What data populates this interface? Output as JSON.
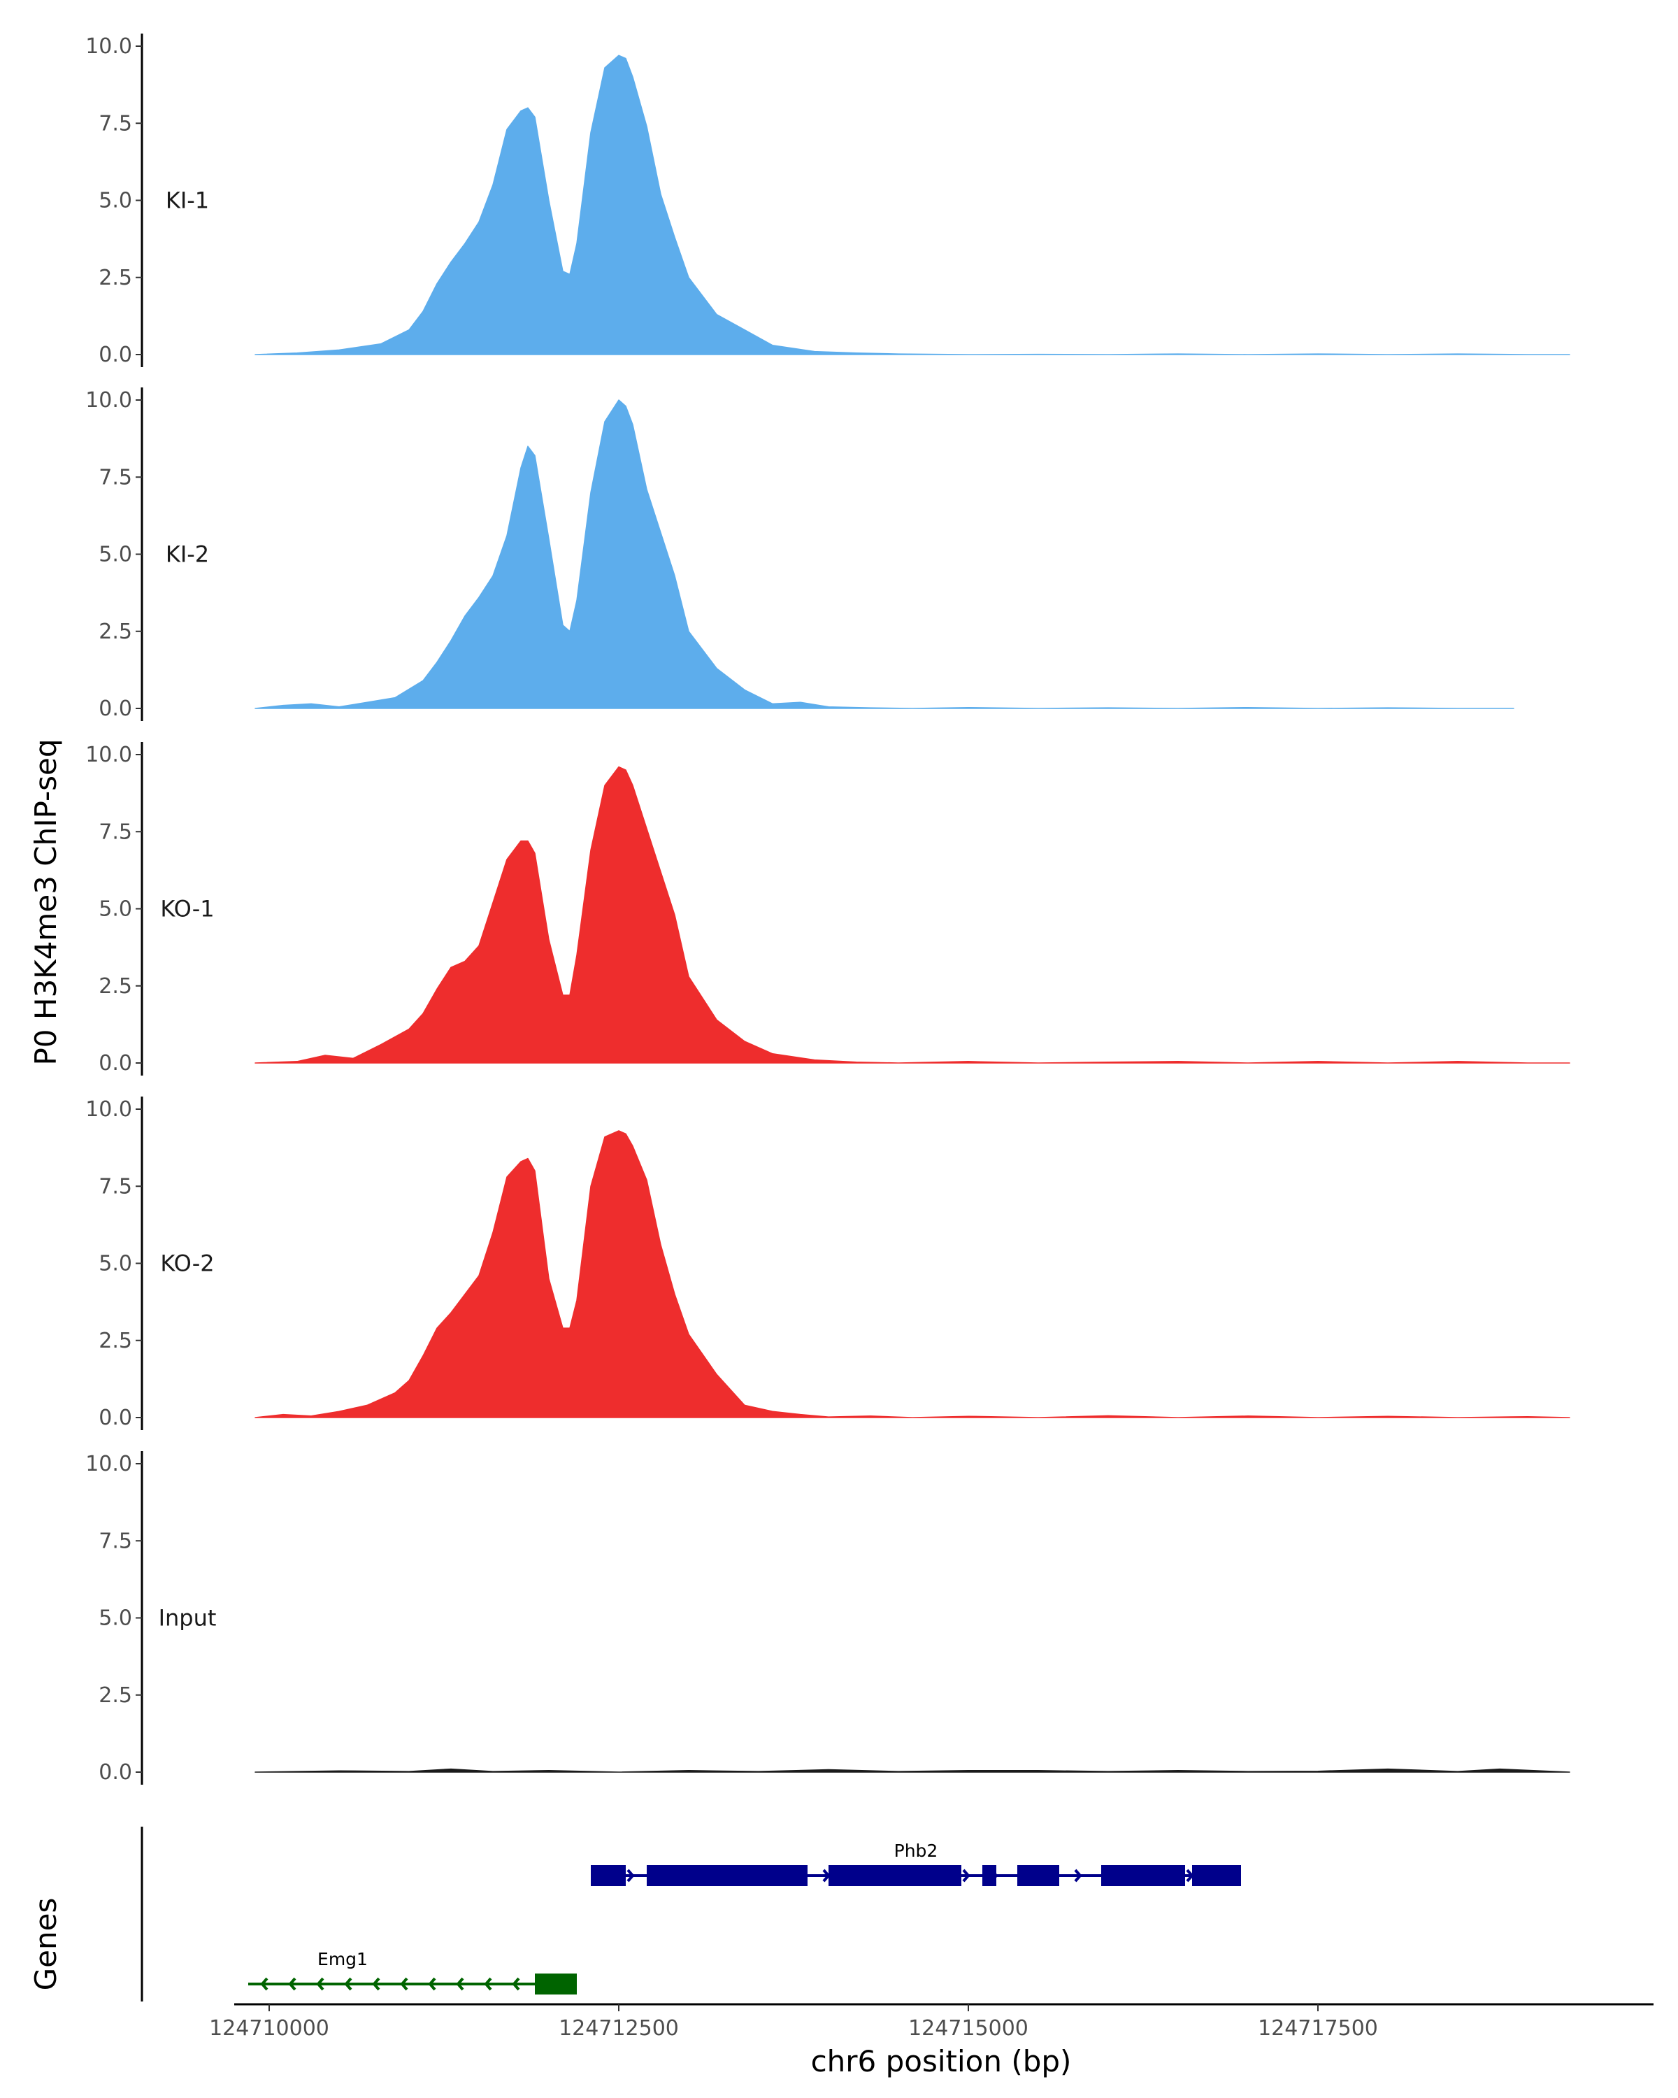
{
  "chart_data": {
    "type": "area",
    "ylabel": "P0 H3K4me3 ChIP-seq",
    "xlabel": "chr6 position (bp)",
    "xlim": [
      124709750,
      124719900
    ],
    "plot_x_range": [
      124709900,
      124719300
    ],
    "ylim": [
      0,
      10
    ],
    "yticks": [
      0,
      2.5,
      5,
      7.5,
      10
    ],
    "ytick_labels": [
      "0.0",
      "2.5",
      "5.0",
      "7.5",
      "10.0"
    ],
    "xticks": [
      124710000,
      124712500,
      124715000,
      124717500
    ],
    "xtick_labels": [
      "124710000",
      "124712500",
      "124715000",
      "124717500"
    ],
    "gene_track_label": "Genes",
    "grid": false,
    "legend": "none",
    "series": [
      {
        "name": "KI-1",
        "color": "#5DADEC",
        "x": [
          124709900,
          124710200,
          124710500,
          124710800,
          124711000,
          124711100,
          124711200,
          124711300,
          124711400,
          124711500,
          124711600,
          124711700,
          124711800,
          124711850,
          124711900,
          124712000,
          124712100,
          124712150,
          124712200,
          124712300,
          124712400,
          124712500,
          124712550,
          124712600,
          124712700,
          124712800,
          124712900,
          124713000,
          124713200,
          124713400,
          124713600,
          124713900,
          124714200,
          124714500,
          124715000,
          124715500,
          124716000,
          124716500,
          124717000,
          124717500,
          124718000,
          124718500,
          124719000,
          124719300
        ],
        "y": [
          0,
          0.05,
          0.15,
          0.35,
          0.8,
          1.4,
          2.3,
          3.0,
          3.6,
          4.3,
          5.5,
          7.3,
          7.9,
          8.0,
          7.7,
          5.0,
          2.7,
          2.6,
          3.6,
          7.2,
          9.3,
          9.7,
          9.6,
          9.0,
          7.4,
          5.2,
          3.8,
          2.5,
          1.3,
          0.8,
          0.3,
          0.1,
          0.05,
          0.02,
          0.0,
          0.01,
          0.0,
          0.02,
          0.0,
          0.02,
          0.0,
          0.02,
          0.0,
          0.0
        ]
      },
      {
        "name": "KI-2",
        "color": "#5DADEC",
        "x": [
          124709900,
          124710100,
          124710300,
          124710500,
          124710700,
          124710900,
          124711100,
          124711200,
          124711300,
          124711400,
          124711500,
          124711600,
          124711700,
          124711800,
          124711850,
          124711900,
          124712000,
          124712100,
          124712150,
          124712200,
          124712300,
          124712400,
          124712500,
          124712550,
          124712600,
          124712700,
          124712800,
          124712900,
          124713000,
          124713200,
          124713400,
          124713600,
          124713800,
          124714000,
          124714300,
          124714600,
          124715000,
          124715500,
          124716000,
          124716500,
          124717000,
          124717500,
          124718000,
          124718500,
          124718900
        ],
        "y": [
          0,
          0.1,
          0.15,
          0.05,
          0.2,
          0.35,
          0.9,
          1.5,
          2.2,
          3.0,
          3.6,
          4.3,
          5.6,
          7.8,
          8.5,
          8.2,
          5.5,
          2.7,
          2.5,
          3.5,
          7.0,
          9.3,
          10.0,
          9.8,
          9.2,
          7.1,
          5.7,
          4.3,
          2.5,
          1.3,
          0.6,
          0.15,
          0.2,
          0.05,
          0.02,
          0.0,
          0.03,
          0.0,
          0.02,
          0.0,
          0.03,
          0.0,
          0.02,
          0.0,
          0.0
        ]
      },
      {
        "name": "KO-1",
        "color": "#EE2D2D",
        "x": [
          124709900,
          124710200,
          124710400,
          124710600,
          124710800,
          124711000,
          124711100,
          124711200,
          124711300,
          124711400,
          124711500,
          124711600,
          124711700,
          124711800,
          124711850,
          124711900,
          124712000,
          124712100,
          124712150,
          124712200,
          124712300,
          124712400,
          124712500,
          124712550,
          124712600,
          124712700,
          124712800,
          124712900,
          124713000,
          124713200,
          124713400,
          124713600,
          124713900,
          124714200,
          124714500,
          124715000,
          124715500,
          124716000,
          124716500,
          124717000,
          124717500,
          124718000,
          124718500,
          124719000,
          124719300
        ],
        "y": [
          0,
          0.05,
          0.25,
          0.15,
          0.6,
          1.1,
          1.6,
          2.4,
          3.1,
          3.3,
          3.8,
          5.2,
          6.6,
          7.2,
          7.2,
          6.8,
          4.0,
          2.2,
          2.2,
          3.5,
          6.9,
          9.0,
          9.6,
          9.5,
          9.0,
          7.6,
          6.2,
          4.8,
          2.8,
          1.4,
          0.7,
          0.3,
          0.1,
          0.03,
          0.0,
          0.05,
          0.0,
          0.03,
          0.05,
          0.0,
          0.05,
          0.0,
          0.05,
          0.0,
          0.0
        ]
      },
      {
        "name": "KO-2",
        "color": "#EE2D2D",
        "x": [
          124709900,
          124710100,
          124710300,
          124710500,
          124710700,
          124710900,
          124711000,
          124711100,
          124711200,
          124711300,
          124711400,
          124711500,
          124711600,
          124711700,
          124711800,
          124711850,
          124711900,
          124712000,
          124712100,
          124712150,
          124712200,
          124712300,
          124712400,
          124712500,
          124712550,
          124712600,
          124712700,
          124712800,
          124712900,
          124713000,
          124713200,
          124713400,
          124713600,
          124713800,
          124714000,
          124714300,
          124714600,
          124715000,
          124715500,
          124716000,
          124716500,
          124717000,
          124717500,
          124718000,
          124718500,
          124719000,
          124719300
        ],
        "y": [
          0,
          0.1,
          0.05,
          0.2,
          0.4,
          0.8,
          1.2,
          2.0,
          2.9,
          3.4,
          4.0,
          4.6,
          6.0,
          7.8,
          8.3,
          8.4,
          8.0,
          4.5,
          2.9,
          2.9,
          3.8,
          7.5,
          9.1,
          9.3,
          9.2,
          8.8,
          7.7,
          5.6,
          4.0,
          2.7,
          1.4,
          0.4,
          0.2,
          0.1,
          0.02,
          0.05,
          0.0,
          0.04,
          0.0,
          0.06,
          0.0,
          0.05,
          0.0,
          0.04,
          0.0,
          0.03,
          0.0
        ]
      },
      {
        "name": "Input",
        "color": "#1a1a1a",
        "x": [
          124709900,
          124710500,
          124711000,
          124711300,
          124711600,
          124712000,
          124712500,
          124713000,
          124713500,
          124714000,
          124714500,
          124715000,
          124715500,
          124716000,
          124716500,
          124717000,
          124717500,
          124718000,
          124718500,
          124718800,
          124719300
        ],
        "y": [
          0,
          0.04,
          0.02,
          0.1,
          0.02,
          0.05,
          0.0,
          0.05,
          0.02,
          0.08,
          0.02,
          0.05,
          0.05,
          0.02,
          0.05,
          0.02,
          0.03,
          0.1,
          0.02,
          0.1,
          0.0
        ]
      }
    ],
    "genes": [
      {
        "name": "Phb2",
        "strand": "+",
        "color": "#00008B",
        "start": 124712300,
        "end": 124716950,
        "exons": [
          [
            124712300,
            124712550
          ],
          [
            124712700,
            124713150
          ],
          [
            124713150,
            124713850
          ],
          [
            124714000,
            124714950
          ],
          [
            124715100,
            124715200
          ],
          [
            124715350,
            124715650
          ],
          [
            124715950,
            124716550
          ],
          [
            124716600,
            124716950
          ]
        ]
      },
      {
        "name": "Emg1",
        "strand": "-",
        "color": "#006400",
        "start": 124709850,
        "end": 124712200,
        "exons": [
          [
            124711900,
            124712200
          ]
        ]
      }
    ]
  }
}
